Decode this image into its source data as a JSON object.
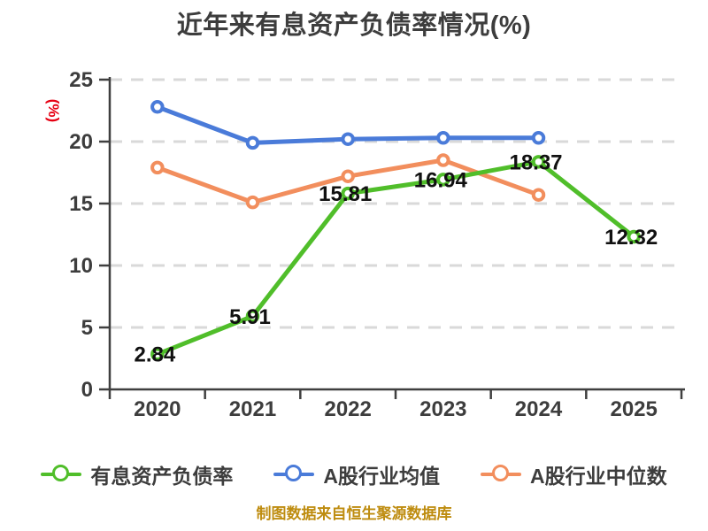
{
  "chart_data": {
    "type": "line",
    "title": "近年来有息资产负债率情况(%)",
    "ylabel": "(%)",
    "xlabel": "",
    "ylim": [
      0,
      25
    ],
    "y_ticks": [
      0,
      5,
      10,
      15,
      20,
      25
    ],
    "categories": [
      "2020",
      "2021",
      "2022",
      "2023",
      "2024",
      "2025"
    ],
    "series": [
      {
        "name": "有息资产负债率",
        "color": "#50BE2A",
        "values": [
          2.84,
          5.91,
          15.81,
          16.94,
          18.37,
          12.32
        ],
        "show_labels": true
      },
      {
        "name": "A股行业均值",
        "color": "#4A7BD9",
        "values": [
          22.8,
          19.9,
          20.2,
          20.3,
          20.3,
          null
        ],
        "show_labels": false
      },
      {
        "name": "A股行业中位数",
        "color": "#F28E5D",
        "values": [
          17.9,
          15.1,
          17.2,
          18.5,
          15.7,
          null
        ],
        "show_labels": false
      }
    ],
    "grid": "horizontal-dashed",
    "legend_position": "bottom"
  },
  "footer": {
    "text": "制图数据来自恒生聚源数据库"
  },
  "style_colors": {
    "title": "#3D3D3D",
    "axis": "#3F3F3F",
    "gridline": "#D9D9D9",
    "tick_label": "#3D3D3D",
    "data_label": "#111111",
    "ylabel_red": "#E60012",
    "footer_gold": "#BE8C0F"
  }
}
